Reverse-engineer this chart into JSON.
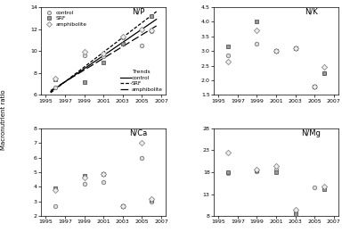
{
  "years": [
    1996,
    1999,
    2001,
    2003,
    2005,
    2006
  ],
  "NP": {
    "control": [
      6.7,
      9.6,
      9.5,
      11.2,
      10.5,
      11.8
    ],
    "SRF": [
      7.4,
      7.2,
      9.0,
      10.7,
      null,
      13.2
    ],
    "amphibolite": [
      7.5,
      9.9,
      9.8,
      11.3,
      12.0,
      11.9
    ],
    "trend_years": [
      1995.5,
      2006.5
    ],
    "trend_control": [
      6.3,
      12.9
    ],
    "trend_SRF": [
      6.2,
      13.6
    ],
    "trend_amphibolite": [
      6.4,
      12.3
    ]
  },
  "NK": {
    "control": [
      2.85,
      3.25,
      3.0,
      3.1,
      1.8,
      2.25
    ],
    "SRF": [
      3.15,
      4.0,
      3.0,
      3.1,
      1.8,
      2.25
    ],
    "amphibolite": [
      2.65,
      3.7,
      3.0,
      3.1,
      1.8,
      2.45
    ]
  },
  "NCa": {
    "control": [
      2.7,
      4.2,
      4.3,
      2.65,
      6.0,
      3.0
    ],
    "SRF": [
      3.9,
      4.75,
      4.85,
      2.7,
      null,
      3.1
    ],
    "amphibolite": [
      3.8,
      4.65,
      4.9,
      2.65,
      7.0,
      3.15
    ]
  },
  "NMg": {
    "control": [
      17.8,
      18.1,
      18.5,
      9.0,
      14.5,
      14.5
    ],
    "SRF": [
      18.0,
      18.3,
      18.0,
      8.5,
      null,
      14.2
    ],
    "amphibolite": [
      22.5,
      18.5,
      19.5,
      9.5,
      null,
      14.8
    ]
  },
  "xlim": [
    1994.5,
    2007.5
  ],
  "xticks": [
    1995,
    1997,
    1999,
    2001,
    2003,
    2005,
    2007
  ],
  "NP_ylim": [
    6,
    14
  ],
  "NP_yticks": [
    6,
    8,
    10,
    12,
    14
  ],
  "NK_ylim": [
    1.5,
    4.5
  ],
  "NK_yticks": [
    1.5,
    2.0,
    2.5,
    3.0,
    3.5,
    4.0,
    4.5
  ],
  "NCa_ylim": [
    2,
    8
  ],
  "NCa_yticks": [
    2,
    3,
    4,
    5,
    6,
    7,
    8
  ],
  "NMg_ylim": [
    8,
    28
  ],
  "NMg_yticks": [
    8,
    13,
    18,
    23,
    28
  ]
}
